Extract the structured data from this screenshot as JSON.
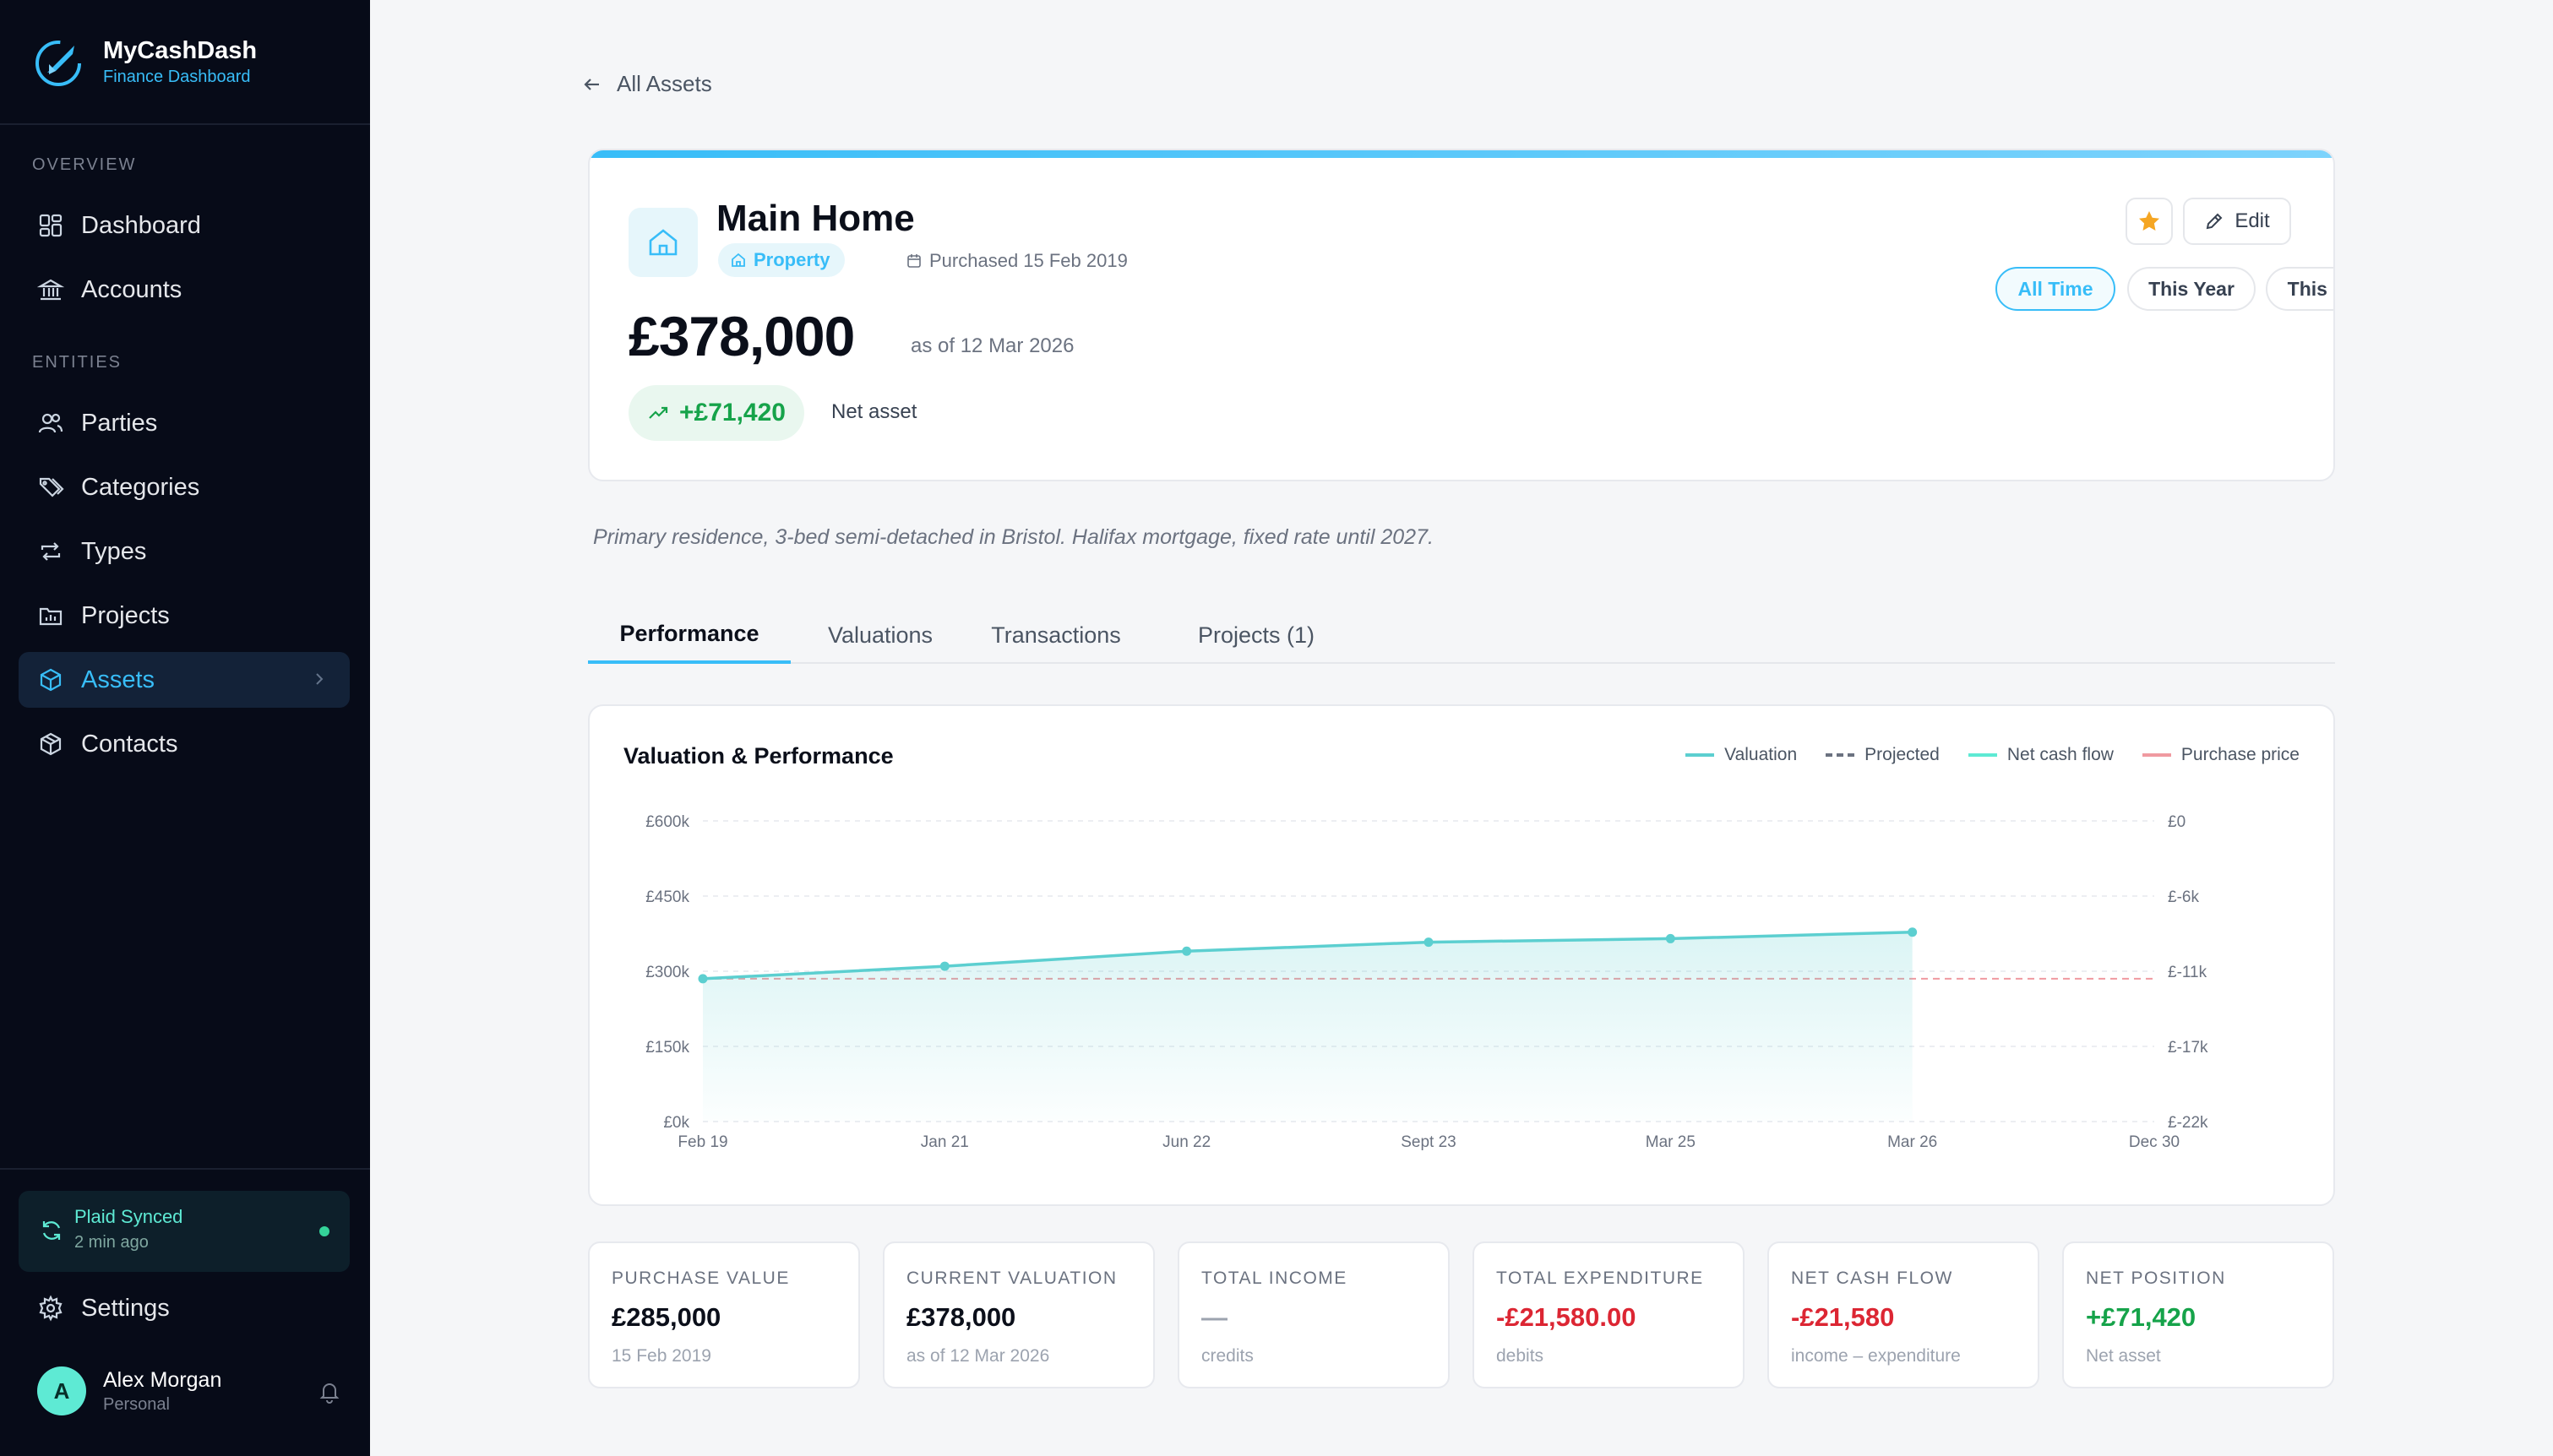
{
  "brand": {
    "name": "MyCashDash",
    "subtitle": "Finance Dashboard"
  },
  "sidebar": {
    "sections": {
      "overview": "OVERVIEW",
      "entities": "ENTITIES"
    },
    "items": [
      {
        "label": "Dashboard",
        "icon": "grid-icon"
      },
      {
        "label": "Accounts",
        "icon": "bank-icon"
      },
      {
        "label": "Parties",
        "icon": "users-icon"
      },
      {
        "label": "Categories",
        "icon": "tags-icon"
      },
      {
        "label": "Types",
        "icon": "repeat-icon"
      },
      {
        "label": "Projects",
        "icon": "folder-chart-icon"
      },
      {
        "label": "Assets",
        "icon": "box-icon",
        "active": true
      },
      {
        "label": "Contacts",
        "icon": "package-icon"
      }
    ],
    "sync": {
      "title": "Plaid Synced",
      "time": "2 min ago"
    },
    "settings_label": "Settings",
    "user": {
      "initial": "A",
      "name": "Alex Morgan",
      "role": "Personal"
    }
  },
  "header": {
    "back_label": "All Assets"
  },
  "asset": {
    "title": "Main Home",
    "badge": "Property",
    "purchased": "Purchased 15 Feb 2019",
    "value": "£378,000",
    "as_of": "as of 12 Mar 2026",
    "gain": "+£71,420",
    "gain_note": "Net asset",
    "edit_label": "Edit",
    "ranges": [
      "All Time",
      "This Year",
      "This Month"
    ],
    "active_range": "All Time",
    "description": "Primary residence, 3-bed semi-detached in Bristol. Halifax mortgage, fixed rate until 2027."
  },
  "tabs": [
    "Performance",
    "Valuations",
    "Transactions",
    "Projects (1)"
  ],
  "colors": {
    "accent": "#38bdf8",
    "valuation": "#5ccfd0",
    "projected": "#6b7280",
    "net_cash_flow": "#5eead4",
    "purchase_price": "#f09aa0",
    "positive": "#16a34a",
    "negative": "#dc2633"
  },
  "chart_data": {
    "type": "line",
    "title": "Valuation & Performance",
    "legend": [
      "Valuation",
      "Projected",
      "Net cash flow",
      "Purchase price"
    ],
    "legend_position": "top-right",
    "x_tick_labels": [
      "Feb 19",
      "Jan 21",
      "Jun 22",
      "Sept 23",
      "Mar 25",
      "Mar 26",
      "Dec 30"
    ],
    "y_left_ticks": [
      "£600k",
      "£450k",
      "£300k",
      "£150k",
      "£0k"
    ],
    "y_right_ticks": [
      "£0",
      "£-6k",
      "£-11k",
      "£-17k",
      "£-22k"
    ],
    "ylim": [
      0,
      600000
    ],
    "grid": true,
    "series": [
      {
        "name": "Valuation",
        "x": [
          "Feb 19",
          "Jan 21",
          "Jun 22",
          "Sept 23",
          "Mar 25",
          "Mar 26"
        ],
        "values": [
          285000,
          310000,
          340000,
          358000,
          365000,
          378000
        ]
      },
      {
        "name": "Purchase price",
        "x": [
          "Feb 19",
          "Dec 30"
        ],
        "values": [
          285000,
          285000
        ]
      }
    ]
  },
  "stats": [
    {
      "label": "PURCHASE VALUE",
      "value": "£285,000",
      "sub": "15 Feb 2019",
      "tone": "normal"
    },
    {
      "label": "CURRENT VALUATION",
      "value": "£378,000",
      "sub": "as of 12 Mar 2026",
      "tone": "normal"
    },
    {
      "label": "TOTAL INCOME",
      "value": "—",
      "sub": "credits",
      "tone": "muted"
    },
    {
      "label": "TOTAL EXPENDITURE",
      "value": "-£21,580.00",
      "sub": "debits",
      "tone": "neg"
    },
    {
      "label": "NET CASH FLOW",
      "value": "-£21,580",
      "sub": "income – expenditure",
      "tone": "neg"
    },
    {
      "label": "NET POSITION",
      "value": "+£71,420",
      "sub": "Net asset",
      "tone": "pos"
    }
  ]
}
